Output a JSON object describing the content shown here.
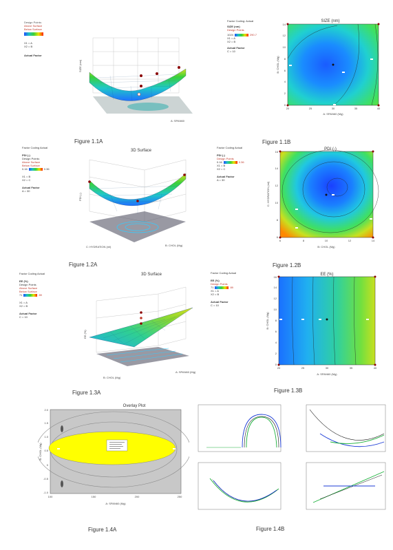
{
  "captions": {
    "f11a": "Figure 1.1A",
    "f11b": "Figure 1.1B",
    "f12a": "Figure 1.2A",
    "f12b": "Figure 1.2B",
    "f13a": "Figure 1.3A",
    "f13b": "Figure 1.3B",
    "f14a": "Figure 1.4A",
    "f14b": "Figure 1.4B"
  },
  "fig11a": {
    "legend": [
      "Design Points:",
      "Above Surface",
      "Below Surface"
    ],
    "x_line": "X1 = A",
    "x2_line": "X2 = B",
    "actual_factor": "Actual Factor",
    "ylabel": "SIZE (nm)",
    "xlabel": "A: SPAN60"
  },
  "fig11b": {
    "coding": "Factor Coding: Actual",
    "response": "SIZE (nm)",
    "design_points": "Design Points",
    "range_lo": "1024",
    "range_hi": "290.7",
    "x1": "X1 = A",
    "x2": "X2 = B",
    "actual_factor": "Actual Factor",
    "factor_value": "C = 10",
    "title": "SIZE (nm)",
    "xlabel": "A: SPAN60 (Mg)",
    "ylabel": "B: CHOL (Mg)",
    "xticks": [
      "20",
      "25",
      "30",
      "35",
      "40"
    ],
    "yticks": [
      "0",
      "2",
      "4",
      "6",
      "8",
      "10",
      "12",
      "14"
    ]
  },
  "fig12a": {
    "coding": "Factor Coding Actual",
    "response": "PDI (-)",
    "legend": [
      "Design Points:",
      "Above Surface",
      "Below Surface"
    ],
    "range_lo": "0.16",
    "range_hi": "0.36",
    "x1": "X1 = B",
    "x2": "X2 = C",
    "actual_factor": "Actual Factor",
    "factor_value": "A = 30",
    "title": "3D Surface",
    "zlabel": "PDI (-)",
    "xlabel": "C: HYDRATION (ml)",
    "ylabel": "B: CHOL (Mg)"
  },
  "fig12b": {
    "coding": "Factor Coding Actual",
    "response": "PDI (-)",
    "design_points": "Design Points",
    "range_lo": "0.16",
    "range_hi": "0.36",
    "x1": "X1 = B",
    "x2": "X2 = C",
    "actual_factor": "Actual Factor",
    "factor_value": "A = 30",
    "title": "PDI (-)",
    "xlabel": "B: CHOL (Mg)",
    "ylabel": "C: HYDRATION (ml)",
    "xticks": [
      "6",
      "8",
      "10",
      "12",
      "14"
    ],
    "yticks": [
      "6",
      "8",
      "10",
      "12",
      "14",
      "16"
    ]
  },
  "fig13a": {
    "coding": "Factor Coding Actual",
    "response": "EE (%)",
    "legend": [
      "Design Points",
      "Above Surface",
      "Below Surface"
    ],
    "range_lo": "71",
    "range_hi": "89",
    "x1": "X1 = A",
    "x2": "X2 = B",
    "actual_factor": "Actual Factor",
    "factor_value": "C = 10",
    "title": "3D Surface",
    "zlabel": "EE (%)",
    "xlabel": "B: CHOL (Mg)",
    "ylabel": "A: SPAN60 (Mg)"
  },
  "fig13b": {
    "coding": "Factor Coding Actual",
    "response": "EE (%)",
    "design_points": "Design Points",
    "range_lo": "71",
    "range_hi": "89",
    "x1": "X1 = A",
    "x2": "X2 = B",
    "actual_factor": "Actual Factor",
    "factor_value": "C = 10",
    "title": "EE (%)",
    "xlabel": "A: SPAN60 (Mg)",
    "ylabel": "B: CHOL (Mg)",
    "xticks": [
      "20",
      "25",
      "30",
      "35",
      "40"
    ],
    "yticks": [
      "0",
      "2",
      "4",
      "6",
      "8",
      "10",
      "12",
      "14",
      "16"
    ]
  },
  "fig14a": {
    "title": "Overlay Plot",
    "xlabel": "A: SPAN60 (Mg)",
    "ylabel": "B: CHOL (Mg)",
    "xticks": [
      "100",
      "150",
      "200",
      "250"
    ],
    "yticks": [
      "-1.0",
      "-0.5",
      "0",
      "0.5",
      "1.0",
      "1.5",
      "2.0"
    ]
  },
  "colors": {
    "surface_blue": "#1f6fff",
    "surface_green": "#3ad13a",
    "surface_yellow": "#e6e600",
    "overlay_yellow": "#ffff00",
    "overlay_grey": "#c8c8c8",
    "design_point": "#8b0000"
  }
}
